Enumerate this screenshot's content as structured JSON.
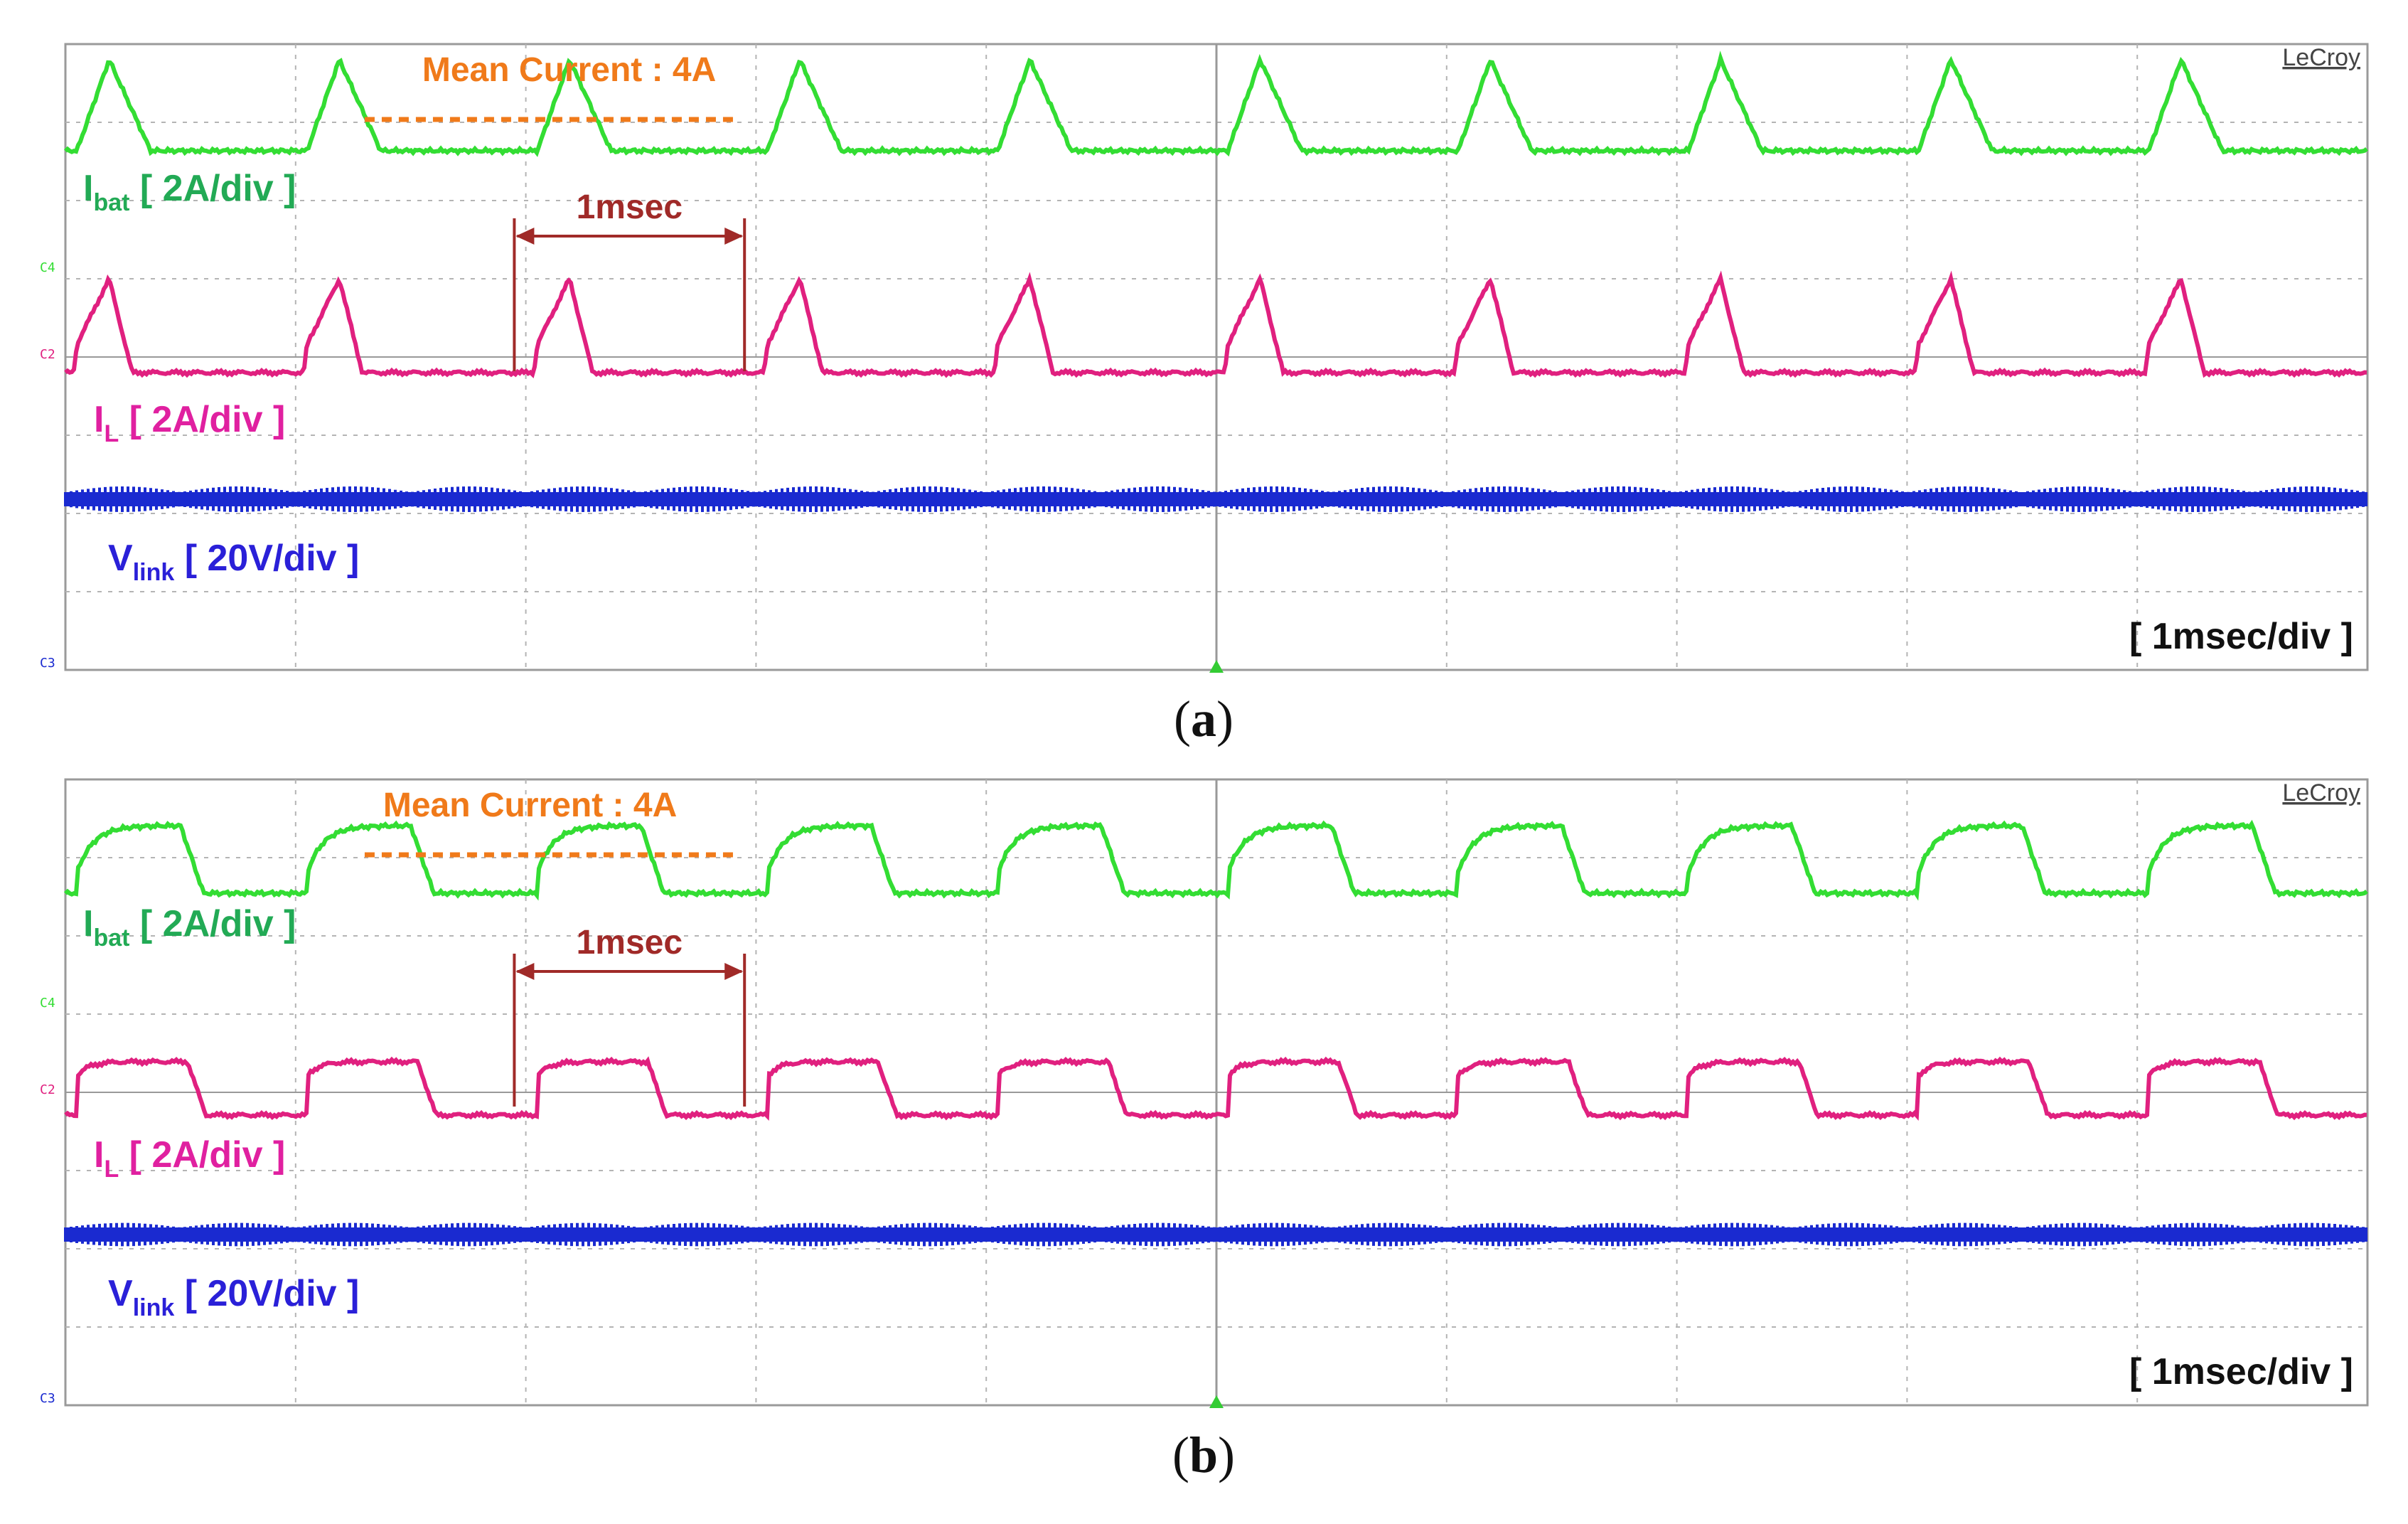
{
  "figure": {
    "panels": [
      {
        "id": "a",
        "caption_letter": "a",
        "brand": "LeCroy",
        "mean_label": "Mean Current : 4A",
        "ibat_main": "I",
        "ibat_sub": "bat",
        "ibat_scale": " [ 2A/div ]",
        "il_main": "I",
        "il_sub": "L",
        "il_scale": " [ 2A/div ]",
        "vlink_main": "V",
        "vlink_sub": "link",
        "vlink_scale": " [ 20V/div ]",
        "period_label": "1msec",
        "timebase": "[ 1msec/div ]",
        "ch_top": "C4",
        "ch_mid": "C2",
        "ch_bot": "C3"
      },
      {
        "id": "b",
        "caption_letter": "b",
        "brand": "LeCroy",
        "mean_label": "Mean Current : 4A",
        "ibat_main": "I",
        "ibat_sub": "bat",
        "ibat_scale": " [ 2A/div ]",
        "il_main": "I",
        "il_sub": "L",
        "il_scale": " [ 2A/div ]",
        "vlink_main": "V",
        "vlink_sub": "link",
        "vlink_scale": " [ 20V/div ]",
        "period_label": "1msec",
        "timebase": "[ 1msec/div ]",
        "ch_top": "C4",
        "ch_mid": "C2",
        "ch_bot": "C3"
      }
    ]
  },
  "colors": {
    "ibat": "#33dd33",
    "ibat_label": "#22aa55",
    "il": "#e0207f",
    "il_label": "#e020a0",
    "vlink": "#1a2ad0",
    "vlink_label": "#2a20d8",
    "mean": "#f07a1a",
    "marker": "#a02a28",
    "grid": "#b4b4b4",
    "trigger": "#33cc33"
  },
  "chart_data": [
    {
      "type": "line",
      "panel": "a",
      "x_unit": "msec",
      "xlim": [
        0,
        10
      ],
      "x_divisions": 10,
      "y_divisions": 8,
      "period_ms": 1.0,
      "series": [
        {
          "name": "Ibat",
          "scale": "2A/div",
          "mean_A": 4,
          "waveform": "triangular pulse then flat baseline"
        },
        {
          "name": "IL",
          "scale": "2A/div",
          "waveform": "ramp up, fall, flat baseline"
        },
        {
          "name": "Vlink",
          "scale": "20V/div",
          "waveform": "flat with high-frequency switching ripple"
        }
      ]
    },
    {
      "type": "line",
      "panel": "b",
      "x_unit": "msec",
      "xlim": [
        0,
        10
      ],
      "x_divisions": 10,
      "y_divisions": 8,
      "period_ms": 1.0,
      "series": [
        {
          "name": "Ibat",
          "scale": "2A/div",
          "mean_A": 4,
          "waveform": "rounded square wave"
        },
        {
          "name": "IL",
          "scale": "2A/div",
          "waveform": "square wave, half high / half low"
        },
        {
          "name": "Vlink",
          "scale": "20V/div",
          "waveform": "flat with high-frequency switching ripple"
        }
      ]
    }
  ]
}
